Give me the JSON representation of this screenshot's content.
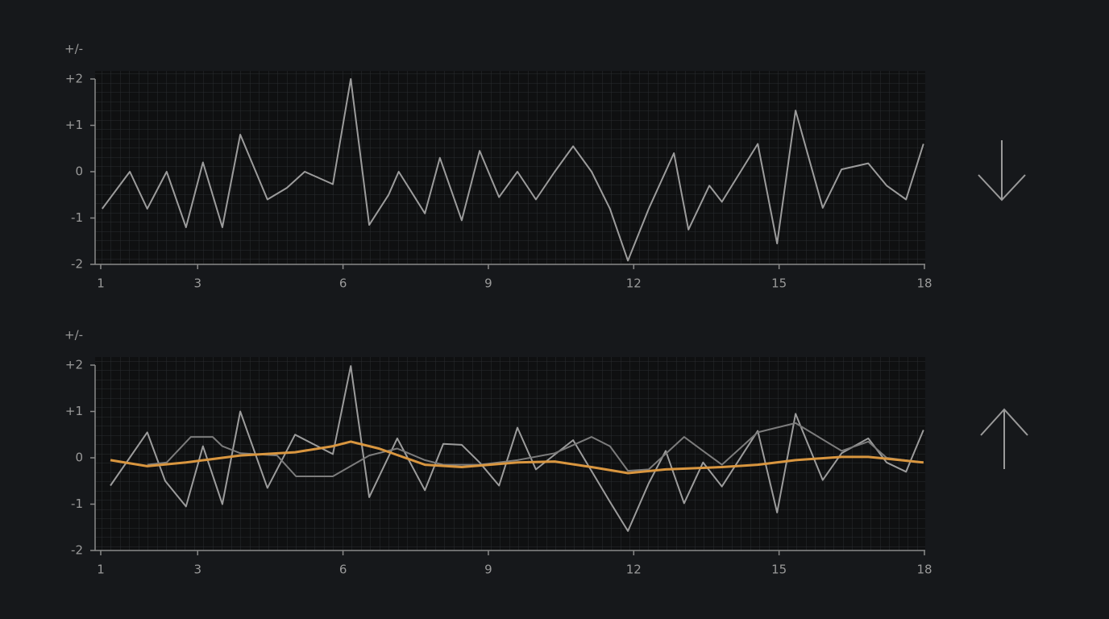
{
  "chart_data": [
    {
      "type": "line",
      "ylabel": "+/-",
      "xlim": [
        1,
        18
      ],
      "xticks": [
        1,
        3,
        6,
        9,
        12,
        15,
        18
      ],
      "ylim": [
        -2,
        2
      ],
      "yticks": [
        {
          "value": 2,
          "label": "+2"
        },
        {
          "value": 1,
          "label": "+1"
        },
        0,
        -1,
        -2
      ],
      "series": [
        {
          "color": "#9c9c9c",
          "x": [
            1.03,
            1.6,
            1.96,
            2.36,
            2.76,
            3.11,
            3.51,
            3.88,
            4.44,
            4.84,
            5.21,
            5.79,
            6.16,
            6.54,
            6.94,
            7.15,
            7.45,
            7.69,
            8.0,
            8.45,
            8.82,
            9.22,
            9.6,
            9.98,
            10.37,
            10.75,
            11.13,
            11.51,
            11.88,
            12.31,
            12.83,
            13.13,
            13.56,
            13.82,
            14.56,
            14.96,
            15.34,
            15.9,
            16.29,
            16.84,
            17.22,
            17.62,
            17.98
          ],
          "values": [
            -0.8,
            0,
            -0.8,
            0,
            -1.2,
            0.2,
            -1.2,
            0.8,
            -0.6,
            -0.35,
            0,
            -0.27,
            2,
            -1.15,
            -0.5,
            0,
            -0.5,
            -0.9,
            0.3,
            -1.05,
            0.45,
            -0.55,
            0,
            -0.6,
            0,
            0.55,
            0,
            -0.8,
            -1.92,
            -0.8,
            0.4,
            -1.25,
            -0.3,
            -0.65,
            0.6,
            -1.55,
            1.32,
            -0.78,
            0.05,
            0.18,
            -0.3,
            -0.6,
            0.6
          ]
        }
      ]
    },
    {
      "type": "line",
      "ylabel": "+/-",
      "xlim": [
        1,
        18
      ],
      "xticks": [
        1,
        3,
        6,
        9,
        12,
        15,
        18
      ],
      "ylim": [
        -2,
        2
      ],
      "yticks": [
        {
          "value": 2,
          "label": "+2"
        },
        {
          "value": 1,
          "label": "+1"
        },
        0,
        -1,
        -2
      ],
      "series": [
        {
          "color": "#9c9c9c",
          "x": [
            1.2,
            1.96,
            2.33,
            2.76,
            3.11,
            3.51,
            3.88,
            4.44,
            5.01,
            5.79,
            6.16,
            6.54,
            7.12,
            7.69,
            8.07,
            8.45,
            8.82,
            9.22,
            9.6,
            9.98,
            10.75,
            11.51,
            11.88,
            12.31,
            12.66,
            13.04,
            13.43,
            13.82,
            14.56,
            14.96,
            15.34,
            15.9,
            16.29,
            16.84,
            17.22,
            17.62,
            17.98
          ],
          "values": [
            -0.6,
            0.55,
            -0.5,
            -1.05,
            0.25,
            -1,
            1,
            -0.65,
            0.5,
            0.08,
            1.98,
            -0.85,
            0.42,
            -0.7,
            0.3,
            0.28,
            -0.1,
            -0.6,
            0.65,
            -0.25,
            0.38,
            -0.95,
            -1.58,
            -0.55,
            0.15,
            -0.98,
            -0.1,
            -0.62,
            0.58,
            -1.18,
            0.95,
            -0.48,
            0.1,
            0.42,
            -0.1,
            -0.3,
            0.6
          ]
        },
        {
          "color": "#7c7c7c",
          "x": [
            1.96,
            2.36,
            2.86,
            3.31,
            3.51,
            3.88,
            4.64,
            5.03,
            5.79,
            6.54,
            7.12,
            7.69,
            8.07,
            8.82,
            9.6,
            10.37,
            11.13,
            11.51,
            11.88,
            12.31,
            13.04,
            13.43,
            13.82,
            14.56,
            15.34,
            16.29,
            16.84,
            17.22,
            17.98
          ],
          "values": [
            -0.15,
            -0.1,
            0.45,
            0.45,
            0.25,
            0.1,
            0.05,
            -0.4,
            -0.4,
            0.05,
            0.2,
            -0.05,
            -0.15,
            -0.15,
            -0.05,
            0.1,
            0.45,
            0.25,
            -0.28,
            -0.25,
            0.45,
            0.15,
            -0.15,
            0.55,
            0.75,
            0.15,
            0.35,
            0,
            -0.1
          ]
        },
        {
          "color": "#d9963f",
          "x": [
            1.2,
            1.96,
            2.76,
            3.88,
            5.01,
            5.79,
            6.16,
            6.74,
            7.69,
            8.45,
            9.6,
            10.37,
            11.13,
            11.88,
            12.66,
            13.82,
            14.56,
            15.34,
            16.29,
            16.84,
            17.22,
            17.98
          ],
          "values": [
            -0.05,
            -0.18,
            -0.1,
            0.05,
            0.12,
            0.25,
            0.35,
            0.2,
            -0.15,
            -0.2,
            -0.1,
            -0.08,
            -0.2,
            -0.33,
            -0.25,
            -0.2,
            -0.15,
            -0.05,
            0.02,
            0.02,
            -0.02,
            -0.1
          ]
        }
      ]
    }
  ]
}
